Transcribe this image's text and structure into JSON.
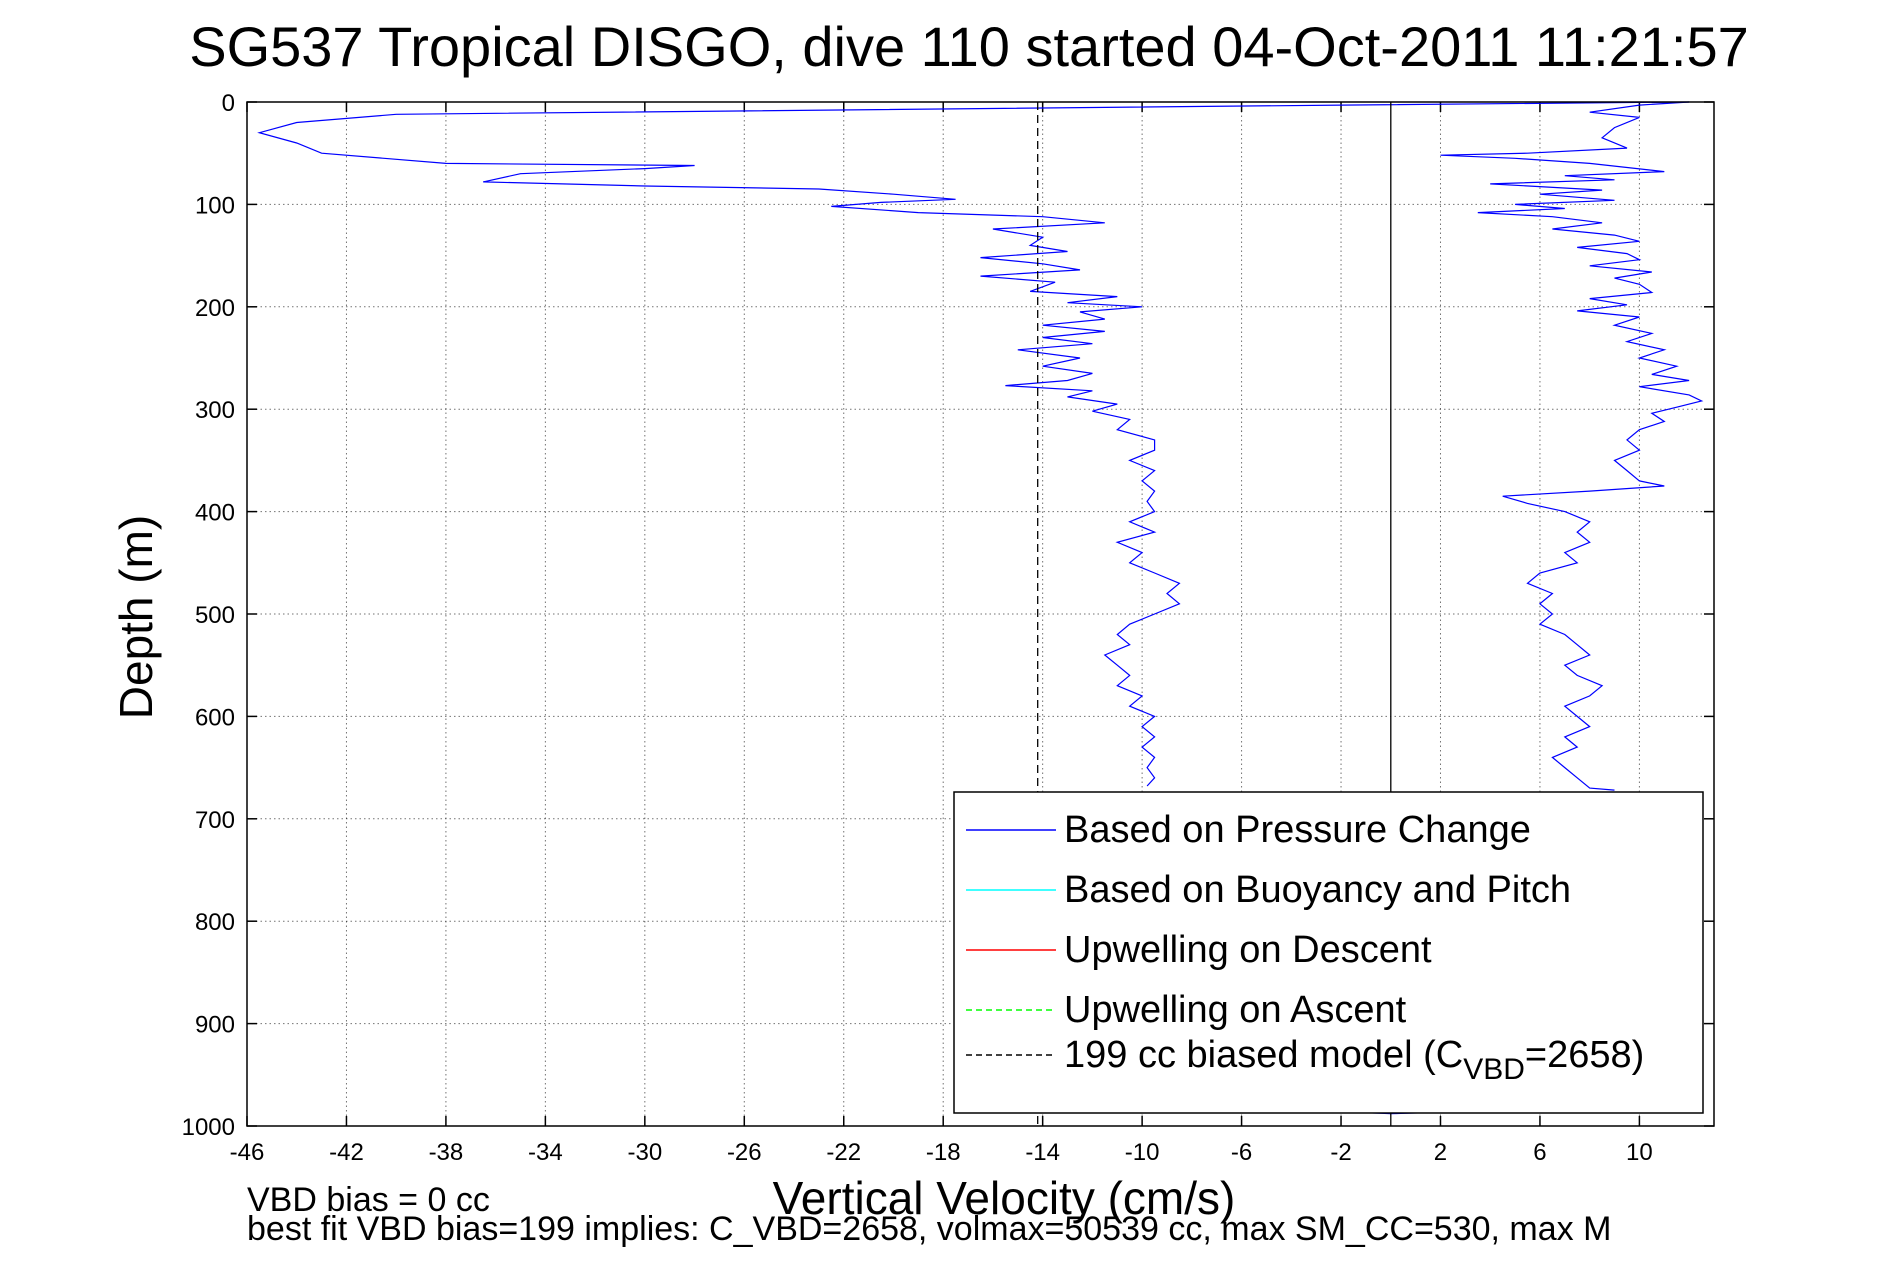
{
  "chart_data": {
    "type": "line",
    "title": "SG537 Tropical DISGO, dive 110 started 04-Oct-2011 11:21:57",
    "xlabel": "Vertical Velocity (cm/s)",
    "ylabel": "Depth (m)",
    "xlim": [
      -46,
      13
    ],
    "ylim": [
      1000,
      0
    ],
    "y_reversed": true,
    "grid": true,
    "legend_position": "bottom-right",
    "xticks": [
      -46,
      -42,
      -38,
      -34,
      -30,
      -26,
      -22,
      -18,
      -14,
      -10,
      -6,
      -2,
      2,
      6,
      10
    ],
    "xtick_labels": [
      "-46",
      "-42",
      "-38",
      "-34",
      "-30",
      "-26",
      "-22",
      "-18",
      "-14",
      "-10",
      "-6",
      "-2",
      "2",
      "6",
      "10"
    ],
    "yticks": [
      0,
      100,
      200,
      300,
      400,
      500,
      600,
      700,
      800,
      900,
      1000
    ],
    "ytick_labels": [
      "0",
      "100",
      "200",
      "300",
      "400",
      "500",
      "600",
      "700",
      "800",
      "900",
      "1000"
    ],
    "series": [
      {
        "name": "Based on Pressure Change",
        "color": "#0000ff",
        "style": "solid",
        "note": "descent",
        "points": [
          [
            12.0,
            0
          ],
          [
            -2.0,
            3
          ],
          [
            -40.0,
            12
          ],
          [
            -44.0,
            20
          ],
          [
            -45.5,
            30
          ],
          [
            -44.0,
            40
          ],
          [
            -43.0,
            50
          ],
          [
            -38.0,
            60
          ],
          [
            -28.0,
            62
          ],
          [
            -30.0,
            65
          ],
          [
            -35.0,
            70
          ],
          [
            -36.5,
            78
          ],
          [
            -30.0,
            82
          ],
          [
            -23.0,
            85
          ],
          [
            -20.0,
            90
          ],
          [
            -17.5,
            95
          ],
          [
            -20.5,
            98
          ],
          [
            -22.5,
            102
          ],
          [
            -19.0,
            108
          ],
          [
            -14.0,
            112
          ],
          [
            -11.5,
            118
          ],
          [
            -16.0,
            124
          ],
          [
            -14.0,
            132
          ],
          [
            -14.5,
            140
          ],
          [
            -13.0,
            146
          ],
          [
            -16.5,
            152
          ],
          [
            -14.0,
            158
          ],
          [
            -12.5,
            164
          ],
          [
            -16.5,
            170
          ],
          [
            -13.5,
            176
          ],
          [
            -14.5,
            185
          ],
          [
            -11.0,
            190
          ],
          [
            -13.0,
            196
          ],
          [
            -10.0,
            200
          ],
          [
            -12.5,
            205
          ],
          [
            -11.5,
            212
          ],
          [
            -14.0,
            218
          ],
          [
            -11.5,
            224
          ],
          [
            -14.0,
            230
          ],
          [
            -12.0,
            236
          ],
          [
            -15.0,
            242
          ],
          [
            -12.5,
            250
          ],
          [
            -14.0,
            258
          ],
          [
            -12.0,
            265
          ],
          [
            -13.0,
            272
          ],
          [
            -15.5,
            277
          ],
          [
            -12.0,
            282
          ],
          [
            -13.0,
            288
          ],
          [
            -11.0,
            295
          ],
          [
            -12.0,
            302
          ],
          [
            -10.5,
            310
          ],
          [
            -11.0,
            320
          ],
          [
            -9.5,
            330
          ],
          [
            -9.5,
            340
          ],
          [
            -10.5,
            350
          ],
          [
            -9.5,
            360
          ],
          [
            -10.0,
            370
          ],
          [
            -9.5,
            380
          ],
          [
            -9.8,
            390
          ],
          [
            -9.5,
            400
          ],
          [
            -10.5,
            410
          ],
          [
            -9.5,
            420
          ],
          [
            -11.0,
            430
          ],
          [
            -10.0,
            440
          ],
          [
            -10.5,
            450
          ],
          [
            -9.5,
            460
          ],
          [
            -8.5,
            470
          ],
          [
            -9.0,
            480
          ],
          [
            -8.5,
            490
          ],
          [
            -9.5,
            500
          ],
          [
            -10.5,
            510
          ],
          [
            -11.0,
            520
          ],
          [
            -10.5,
            530
          ],
          [
            -11.5,
            540
          ],
          [
            -11.0,
            550
          ],
          [
            -10.5,
            560
          ],
          [
            -11.0,
            570
          ],
          [
            -10.0,
            580
          ],
          [
            -10.5,
            590
          ],
          [
            -9.5,
            600
          ],
          [
            -10.0,
            610
          ],
          [
            -9.5,
            620
          ],
          [
            -10.0,
            630
          ],
          [
            -9.5,
            640
          ],
          [
            -9.8,
            650
          ],
          [
            -9.5,
            660
          ],
          [
            -9.8,
            668
          ]
        ]
      },
      {
        "name": "",
        "color": "#0000ff",
        "style": "solid",
        "note": "ascent",
        "points": [
          [
            12.0,
            0
          ],
          [
            10.0,
            3
          ],
          [
            8.0,
            10
          ],
          [
            10.0,
            15
          ],
          [
            9.0,
            25
          ],
          [
            8.5,
            35
          ],
          [
            9.5,
            45
          ],
          [
            5.5,
            50
          ],
          [
            2.0,
            52
          ],
          [
            5.0,
            55
          ],
          [
            8.0,
            60
          ],
          [
            11.0,
            68
          ],
          [
            7.0,
            72
          ],
          [
            9.0,
            76
          ],
          [
            4.0,
            80
          ],
          [
            8.5,
            86
          ],
          [
            6.0,
            90
          ],
          [
            9.0,
            96
          ],
          [
            5.0,
            100
          ],
          [
            7.0,
            104
          ],
          [
            3.5,
            108
          ],
          [
            6.5,
            112
          ],
          [
            8.5,
            118
          ],
          [
            6.5,
            124
          ],
          [
            9.0,
            130
          ],
          [
            10.0,
            136
          ],
          [
            7.5,
            142
          ],
          [
            9.5,
            148
          ],
          [
            10.0,
            154
          ],
          [
            8.0,
            160
          ],
          [
            10.5,
            166
          ],
          [
            9.0,
            172
          ],
          [
            10.0,
            178
          ],
          [
            10.5,
            186
          ],
          [
            8.0,
            192
          ],
          [
            9.5,
            198
          ],
          [
            7.5,
            204
          ],
          [
            10.0,
            210
          ],
          [
            9.0,
            218
          ],
          [
            10.5,
            226
          ],
          [
            9.5,
            234
          ],
          [
            11.0,
            242
          ],
          [
            10.0,
            250
          ],
          [
            11.5,
            258
          ],
          [
            10.5,
            266
          ],
          [
            12.0,
            272
          ],
          [
            10.0,
            278
          ],
          [
            12.0,
            286
          ],
          [
            12.5,
            292
          ],
          [
            11.5,
            298
          ],
          [
            10.5,
            304
          ],
          [
            11.0,
            312
          ],
          [
            10.0,
            320
          ],
          [
            9.5,
            330
          ],
          [
            10.0,
            340
          ],
          [
            9.0,
            350
          ],
          [
            9.5,
            360
          ],
          [
            10.0,
            370
          ],
          [
            11.0,
            375
          ],
          [
            8.0,
            380
          ],
          [
            4.5,
            385
          ],
          [
            5.5,
            392
          ],
          [
            7.0,
            400
          ],
          [
            8.0,
            410
          ],
          [
            7.5,
            420
          ],
          [
            8.0,
            430
          ],
          [
            7.0,
            440
          ],
          [
            7.5,
            450
          ],
          [
            6.0,
            460
          ],
          [
            5.5,
            470
          ],
          [
            6.5,
            480
          ],
          [
            6.0,
            490
          ],
          [
            6.5,
            500
          ],
          [
            6.0,
            510
          ],
          [
            7.0,
            520
          ],
          [
            7.5,
            530
          ],
          [
            8.0,
            540
          ],
          [
            7.0,
            550
          ],
          [
            7.5,
            560
          ],
          [
            8.5,
            570
          ],
          [
            8.0,
            580
          ],
          [
            7.0,
            590
          ],
          [
            7.5,
            600
          ],
          [
            8.0,
            610
          ],
          [
            7.0,
            620
          ],
          [
            7.5,
            630
          ],
          [
            6.5,
            640
          ],
          [
            7.0,
            650
          ],
          [
            7.5,
            660
          ],
          [
            8.0,
            670
          ],
          [
            9.0,
            672
          ]
        ]
      },
      {
        "name": "",
        "color": "#0000ff",
        "style": "solid",
        "note": "bottom segment",
        "points": [
          [
            -2.0,
            986
          ],
          [
            0.0,
            988
          ],
          [
            4.0,
            985
          ]
        ]
      },
      {
        "name": "199 cc biased model (C_VBD=2658)",
        "color": "#000000",
        "style": "dashed",
        "points": [
          [
            -14.2,
            0
          ],
          [
            -14.2,
            1000
          ]
        ]
      },
      {
        "name": "",
        "color": "#000000",
        "style": "solid",
        "note": "zero line",
        "points": [
          [
            0,
            0
          ],
          [
            0,
            1000
          ]
        ]
      }
    ],
    "legend": [
      {
        "label": "Based on Pressure Change",
        "color": "#0000ff",
        "style": "solid"
      },
      {
        "label": "Based on Buoyancy and Pitch",
        "color": "#00ffff",
        "style": "solid"
      },
      {
        "label": "Upwelling on Descent",
        "color": "#ff0000",
        "style": "solid"
      },
      {
        "label": "Upwelling on Ascent",
        "color": "#00ff00",
        "style": "dashed"
      },
      {
        "label": "199 cc biased model (C",
        "sub": "VBD",
        "label_suffix": "=2658)",
        "color": "#000000",
        "style": "dashed"
      }
    ],
    "annotations": [
      "VBD bias = 0 cc",
      "best fit VBD bias=199 implies: C_VBD=2658, volmax=50539 cc, max SM_CC=530, max M"
    ]
  }
}
